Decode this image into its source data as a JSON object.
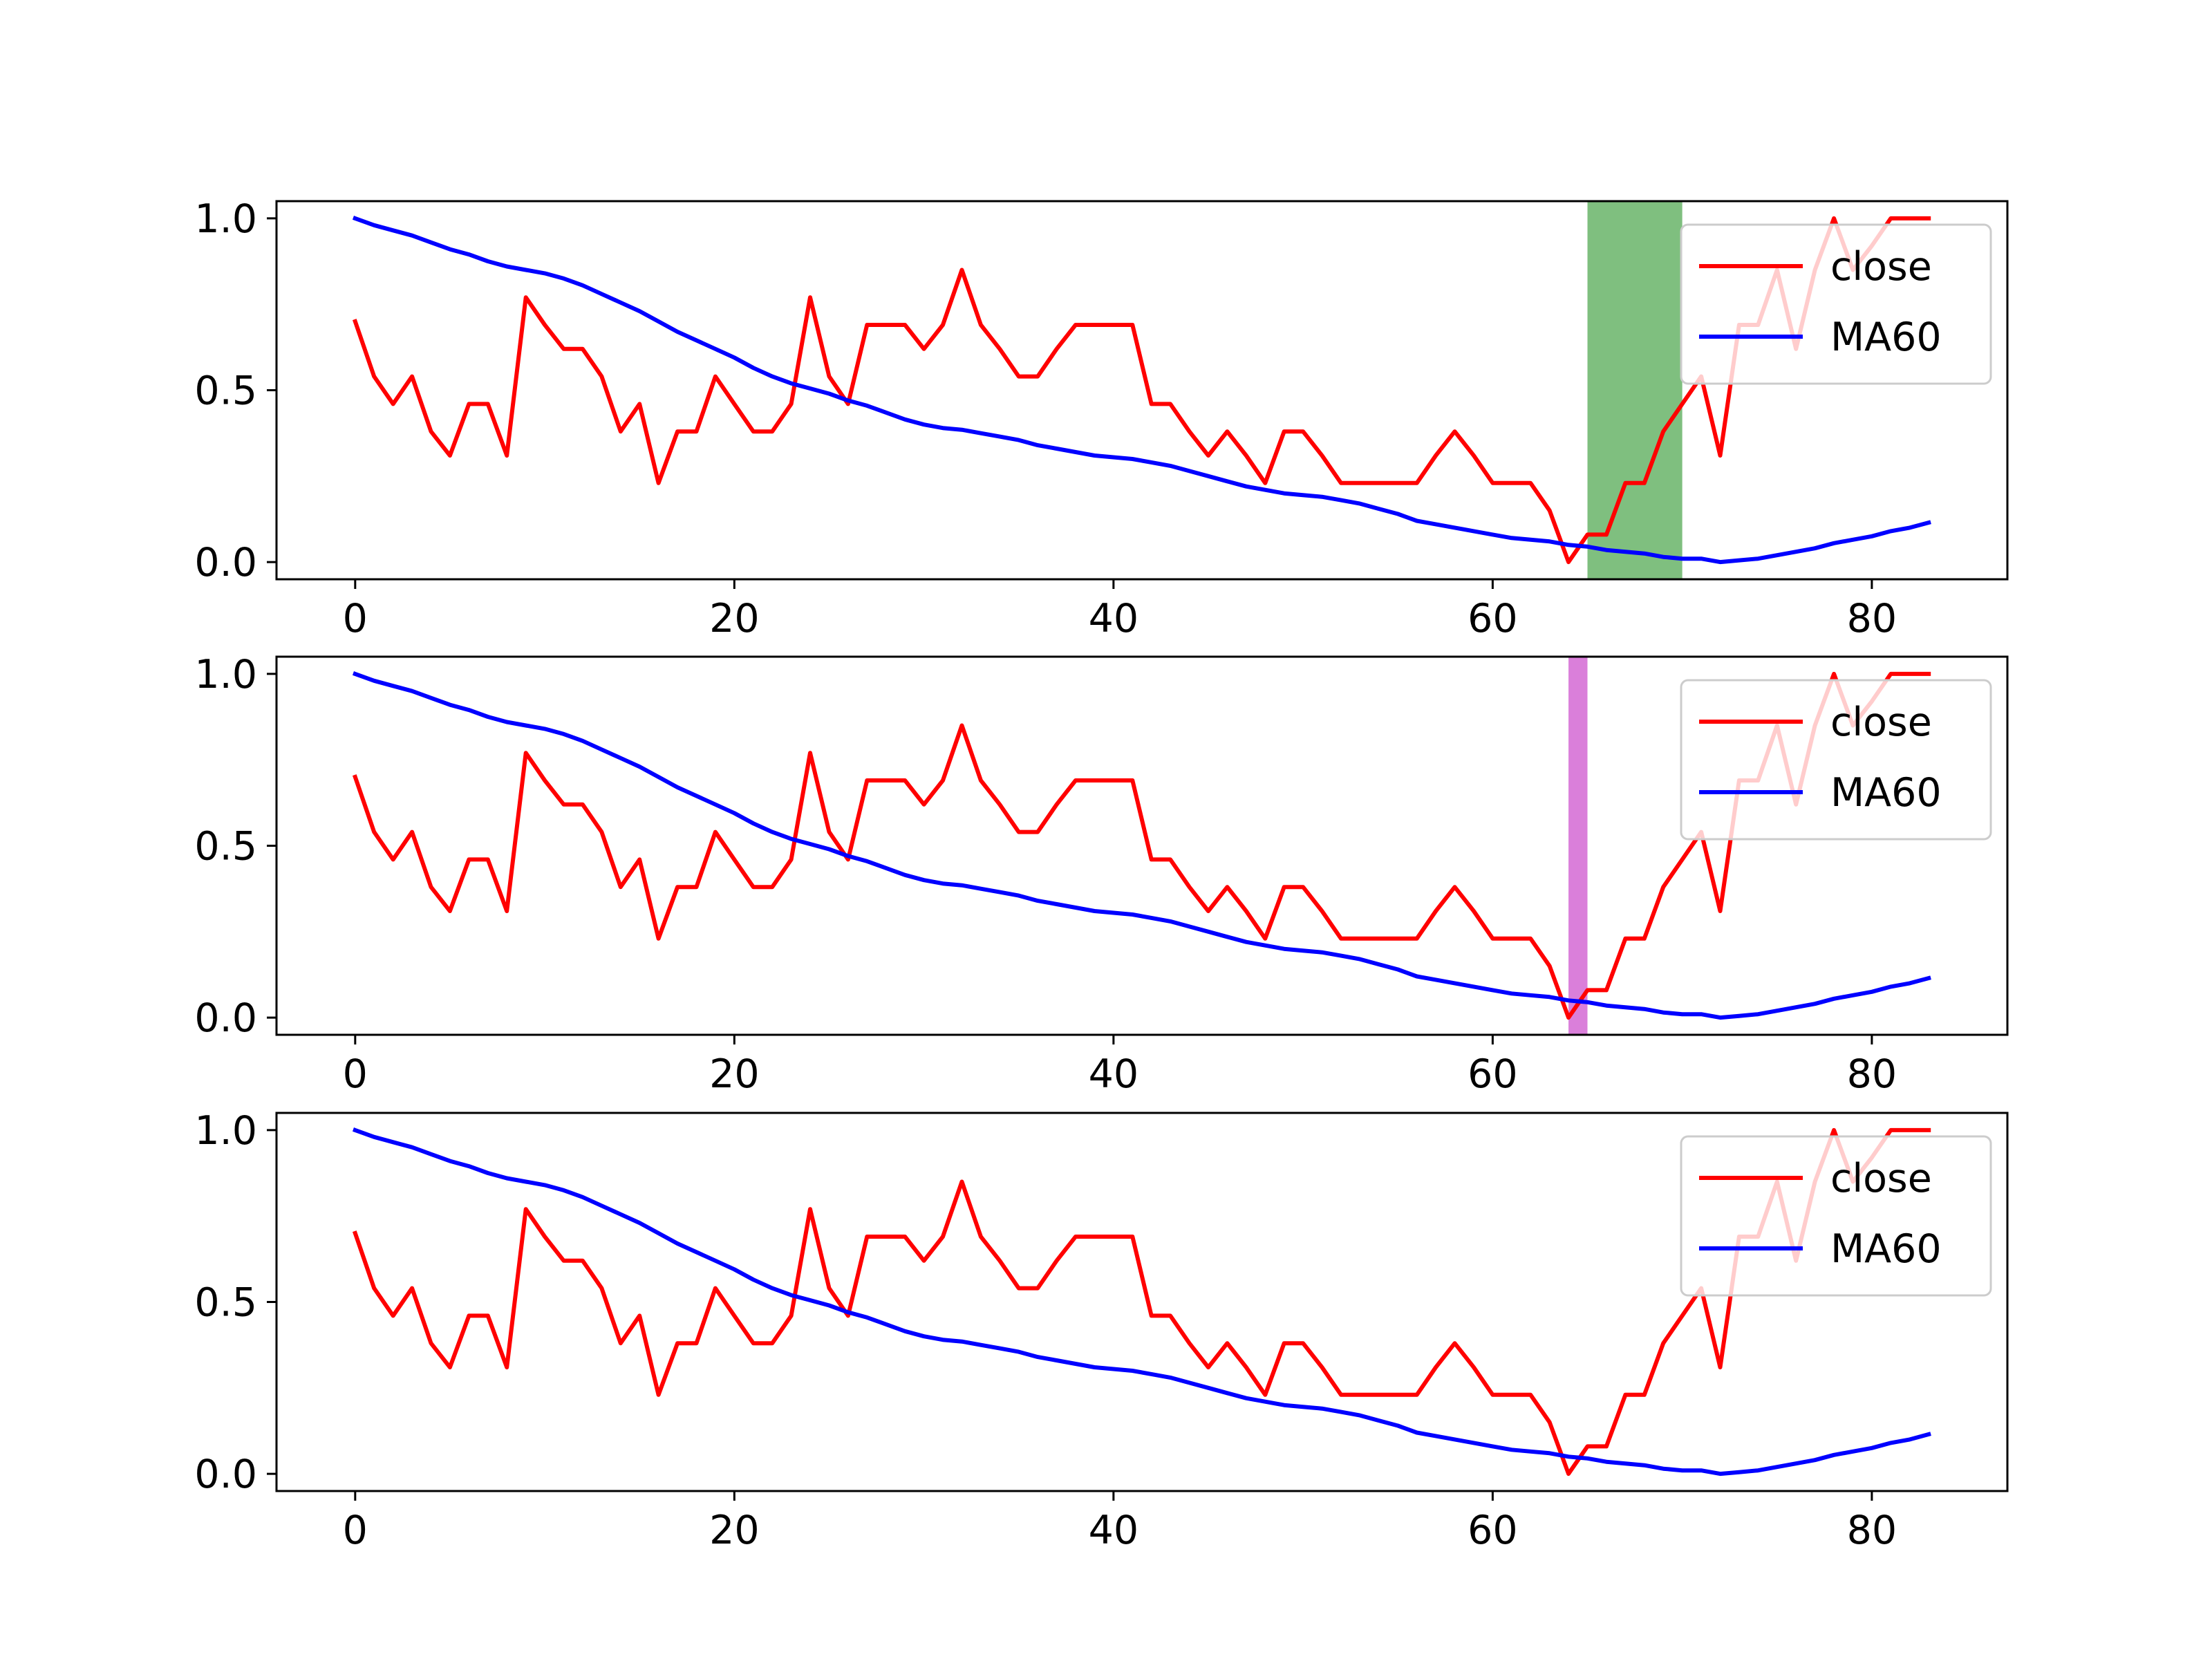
{
  "chart_data": [
    {
      "type": "line",
      "xlim": [
        -4.15,
        87.15
      ],
      "ylim": [
        -0.05,
        1.05
      ],
      "xticks": [
        0,
        20,
        40,
        60,
        80
      ],
      "yticks": [
        0.0,
        0.5,
        1.0
      ],
      "ytick_labels": [
        "0.0",
        "0.5",
        "1.0"
      ],
      "legend_position": "upper right",
      "highlight": {
        "x0": 65,
        "x1": 70,
        "color": "#7fbf7f"
      },
      "series": [
        {
          "name": "close",
          "color": "#ff0000"
        },
        {
          "name": "MA60",
          "color": "#0000ff"
        }
      ]
    },
    {
      "type": "line",
      "xlim": [
        -4.15,
        87.15
      ],
      "ylim": [
        -0.05,
        1.05
      ],
      "xticks": [
        0,
        20,
        40,
        60,
        80
      ],
      "yticks": [
        0.0,
        0.5,
        1.0
      ],
      "ytick_labels": [
        "0.0",
        "0.5",
        "1.0"
      ],
      "legend_position": "upper right",
      "highlight": {
        "x0": 64,
        "x1": 65,
        "color": "#da7fda"
      },
      "series": [
        {
          "name": "close",
          "color": "#ff0000"
        },
        {
          "name": "MA60",
          "color": "#0000ff"
        }
      ]
    },
    {
      "type": "line",
      "xlim": [
        -4.15,
        87.15
      ],
      "ylim": [
        -0.05,
        1.05
      ],
      "xticks": [
        0,
        20,
        40,
        60,
        80
      ],
      "yticks": [
        0.0,
        0.5,
        1.0
      ],
      "ytick_labels": [
        "0.0",
        "0.5",
        "1.0"
      ],
      "legend_position": "upper right",
      "highlight": null,
      "series": [
        {
          "name": "close",
          "color": "#ff0000"
        },
        {
          "name": "MA60",
          "color": "#0000ff"
        }
      ]
    }
  ],
  "series_values": {
    "close": [
      0.7,
      0.54,
      0.46,
      0.54,
      0.38,
      0.31,
      0.46,
      0.46,
      0.31,
      0.77,
      0.69,
      0.62,
      0.62,
      0.54,
      0.38,
      0.46,
      0.23,
      0.38,
      0.38,
      0.54,
      0.46,
      0.38,
      0.38,
      0.46,
      0.77,
      0.54,
      0.46,
      0.69,
      0.69,
      0.69,
      0.62,
      0.69,
      0.85,
      0.69,
      0.62,
      0.54,
      0.54,
      0.62,
      0.69,
      0.69,
      0.69,
      0.69,
      0.46,
      0.46,
      0.38,
      0.31,
      0.38,
      0.31,
      0.23,
      0.38,
      0.38,
      0.31,
      0.23,
      0.23,
      0.23,
      0.23,
      0.23,
      0.31,
      0.38,
      0.31,
      0.23,
      0.23,
      0.23,
      0.15,
      0.0,
      0.08,
      0.08,
      0.23,
      0.23,
      0.38,
      0.46,
      0.54,
      0.31,
      0.69,
      0.69,
      0.85,
      0.62,
      0.85,
      1.0,
      0.85,
      0.92,
      1.0,
      1.0,
      1.0
    ],
    "MA60": [
      1.0,
      0.98,
      0.965,
      0.95,
      0.93,
      0.91,
      0.895,
      0.875,
      0.86,
      0.85,
      0.84,
      0.825,
      0.805,
      0.78,
      0.755,
      0.73,
      0.7,
      0.67,
      0.645,
      0.62,
      0.595,
      0.565,
      0.54,
      0.52,
      0.505,
      0.49,
      0.47,
      0.455,
      0.435,
      0.415,
      0.4,
      0.39,
      0.385,
      0.375,
      0.365,
      0.355,
      0.34,
      0.33,
      0.32,
      0.31,
      0.305,
      0.3,
      0.29,
      0.28,
      0.265,
      0.25,
      0.235,
      0.22,
      0.21,
      0.2,
      0.195,
      0.19,
      0.18,
      0.17,
      0.155,
      0.14,
      0.12,
      0.11,
      0.1,
      0.09,
      0.08,
      0.07,
      0.065,
      0.06,
      0.05,
      0.045,
      0.035,
      0.03,
      0.025,
      0.015,
      0.01,
      0.01,
      0.0,
      0.005,
      0.01,
      0.02,
      0.03,
      0.04,
      0.055,
      0.065,
      0.075,
      0.09,
      0.1,
      0.115
    ]
  }
}
